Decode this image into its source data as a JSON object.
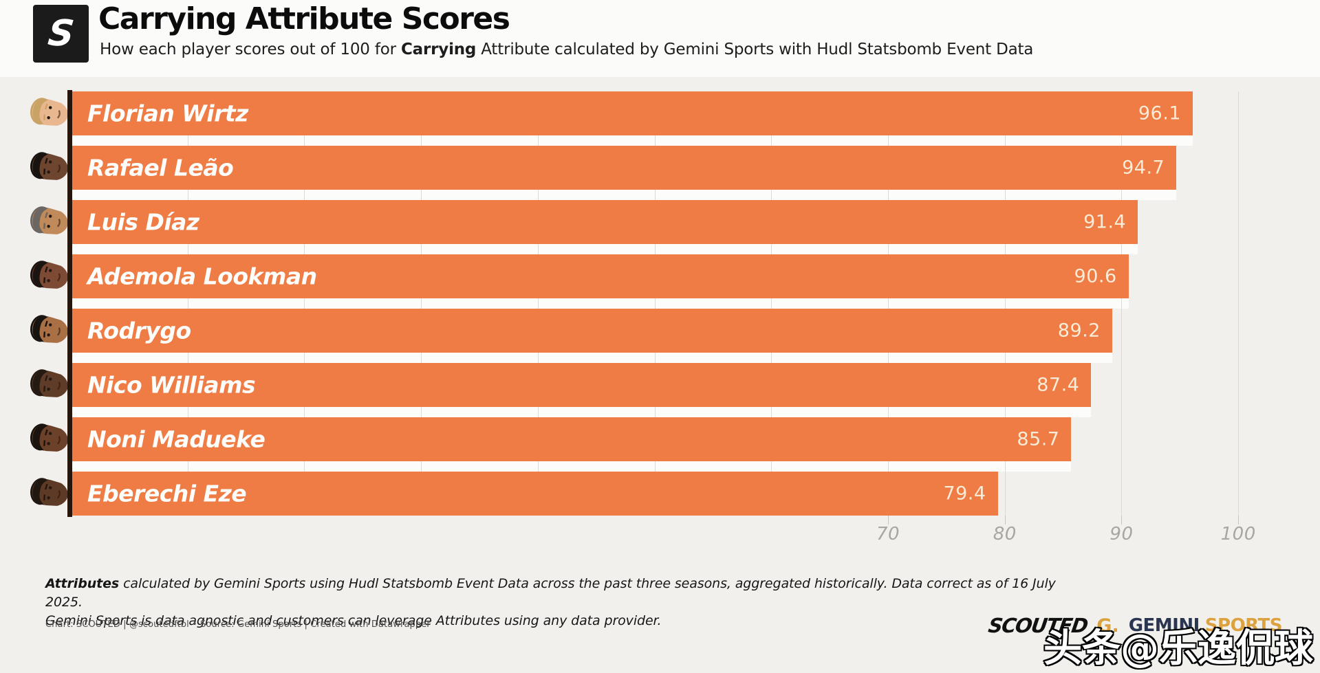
{
  "header": {
    "logo_letter": "S",
    "title": "Carrying Attribute Scores",
    "subtitle_prefix": "How each player scores out of 100 for ",
    "subtitle_bold": "Carrying",
    "subtitle_suffix": " Attribute calculated by Gemini Sports with Hudl Statsbomb Event Data"
  },
  "chart_data": {
    "type": "bar",
    "orientation": "horizontal",
    "title": "Carrying Attribute Scores",
    "categories": [
      "Florian Wirtz",
      "Rafael Leão",
      "Luis Díaz",
      "Ademola Lookman",
      "Rodrygo",
      "Nico Williams",
      "Noni Madueke",
      "Eberechi Eze"
    ],
    "values": [
      96.1,
      94.7,
      91.4,
      90.6,
      89.2,
      87.4,
      85.7,
      79.4
    ],
    "xlabel": "",
    "ylabel": "",
    "xlim": [
      0,
      107
    ],
    "x_ticks": [
      70,
      80,
      90,
      100
    ],
    "grid_step": 10,
    "grid": "vertical",
    "legend": "none",
    "bar_color": "#ee7c44",
    "value_label_position": "inside-end",
    "value_label_color": "#f8ecd9",
    "background": "#f2f0ed"
  },
  "avatars": [
    {
      "player": "Florian Wirtz",
      "skin": "#e9b78f",
      "hair": "#c9a265"
    },
    {
      "player": "Rafael Leão",
      "skin": "#6e4630",
      "hair": "#191310"
    },
    {
      "player": "Luis Díaz",
      "skin": "#c08a5a",
      "hair": "#6b6661"
    },
    {
      "player": "Ademola Lookman",
      "skin": "#7d4a34",
      "hair": "#1c1410"
    },
    {
      "player": "Rodrygo",
      "skin": "#a96f45",
      "hair": "#171310"
    },
    {
      "player": "Nico Williams",
      "skin": "#5f3c28",
      "hair": "#241a12"
    },
    {
      "player": "Noni Madueke",
      "skin": "#6b4129",
      "hair": "#1b130e"
    },
    {
      "player": "Eberechi Eze",
      "skin": "#5d3a26",
      "hair": "#201711"
    }
  ],
  "footer": {
    "note_bold": "Attributes",
    "note_rest": " calculated by Gemini Sports using Hudl Statsbomb Event Data across the past three seasons, aggregated historically. Data correct as of 16 July 2025.",
    "note_line2": "Gemini Sports is data agnostic and customers can leverage Attributes using any data provider.",
    "credit": "Chart: SCOUTED | @scoutedftbl • Source: Gemini Sports | Created with Datawrapper"
  },
  "branding": {
    "scouted": "SCOUTED",
    "gemini_g": "G.",
    "gemini": "GEMINI",
    "sports": "SPORTS"
  },
  "watermark": "头条@乐逸侃球",
  "colors": {
    "bar": "#ee7c44",
    "background": "#f2f0ed",
    "header_background": "#fbfbfa",
    "axis_line": "#26150a",
    "gridline": "#ddd9d4",
    "axis_label": "#a9a5a0",
    "value_label": "#f8ecd9",
    "name_label": "#fdfdfc",
    "gold": "#dba23f",
    "navy": "#2a3550"
  }
}
